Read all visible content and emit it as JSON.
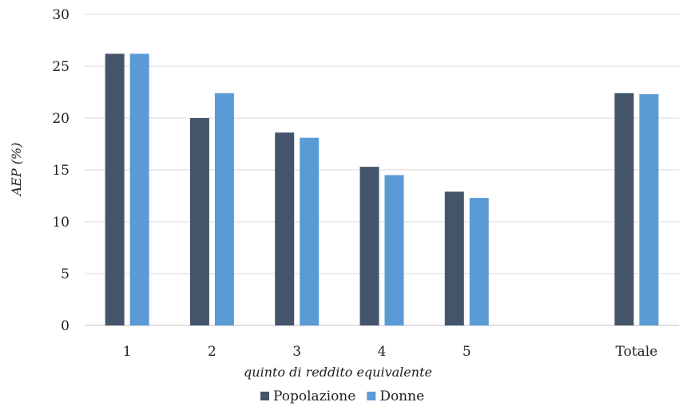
{
  "chart_data": {
    "type": "bar",
    "title": "",
    "xlabel": "quinto di reddito equivalente",
    "ylabel": "AEP (%)",
    "ylim": [
      0,
      30
    ],
    "yticks": [
      0,
      5,
      10,
      15,
      20,
      25,
      30
    ],
    "categories": [
      "1",
      "2",
      "3",
      "4",
      "5",
      "",
      "Totale"
    ],
    "series": [
      {
        "name": "Popolazione",
        "color": "#44546a",
        "values": [
          26.2,
          20.0,
          18.6,
          15.3,
          12.9,
          null,
          22.4
        ]
      },
      {
        "name": "Donne",
        "color": "#5b9bd5",
        "values": [
          26.2,
          22.4,
          18.1,
          14.5,
          12.3,
          null,
          22.3
        ]
      }
    ],
    "grid": true,
    "legend": "bottom-center"
  }
}
